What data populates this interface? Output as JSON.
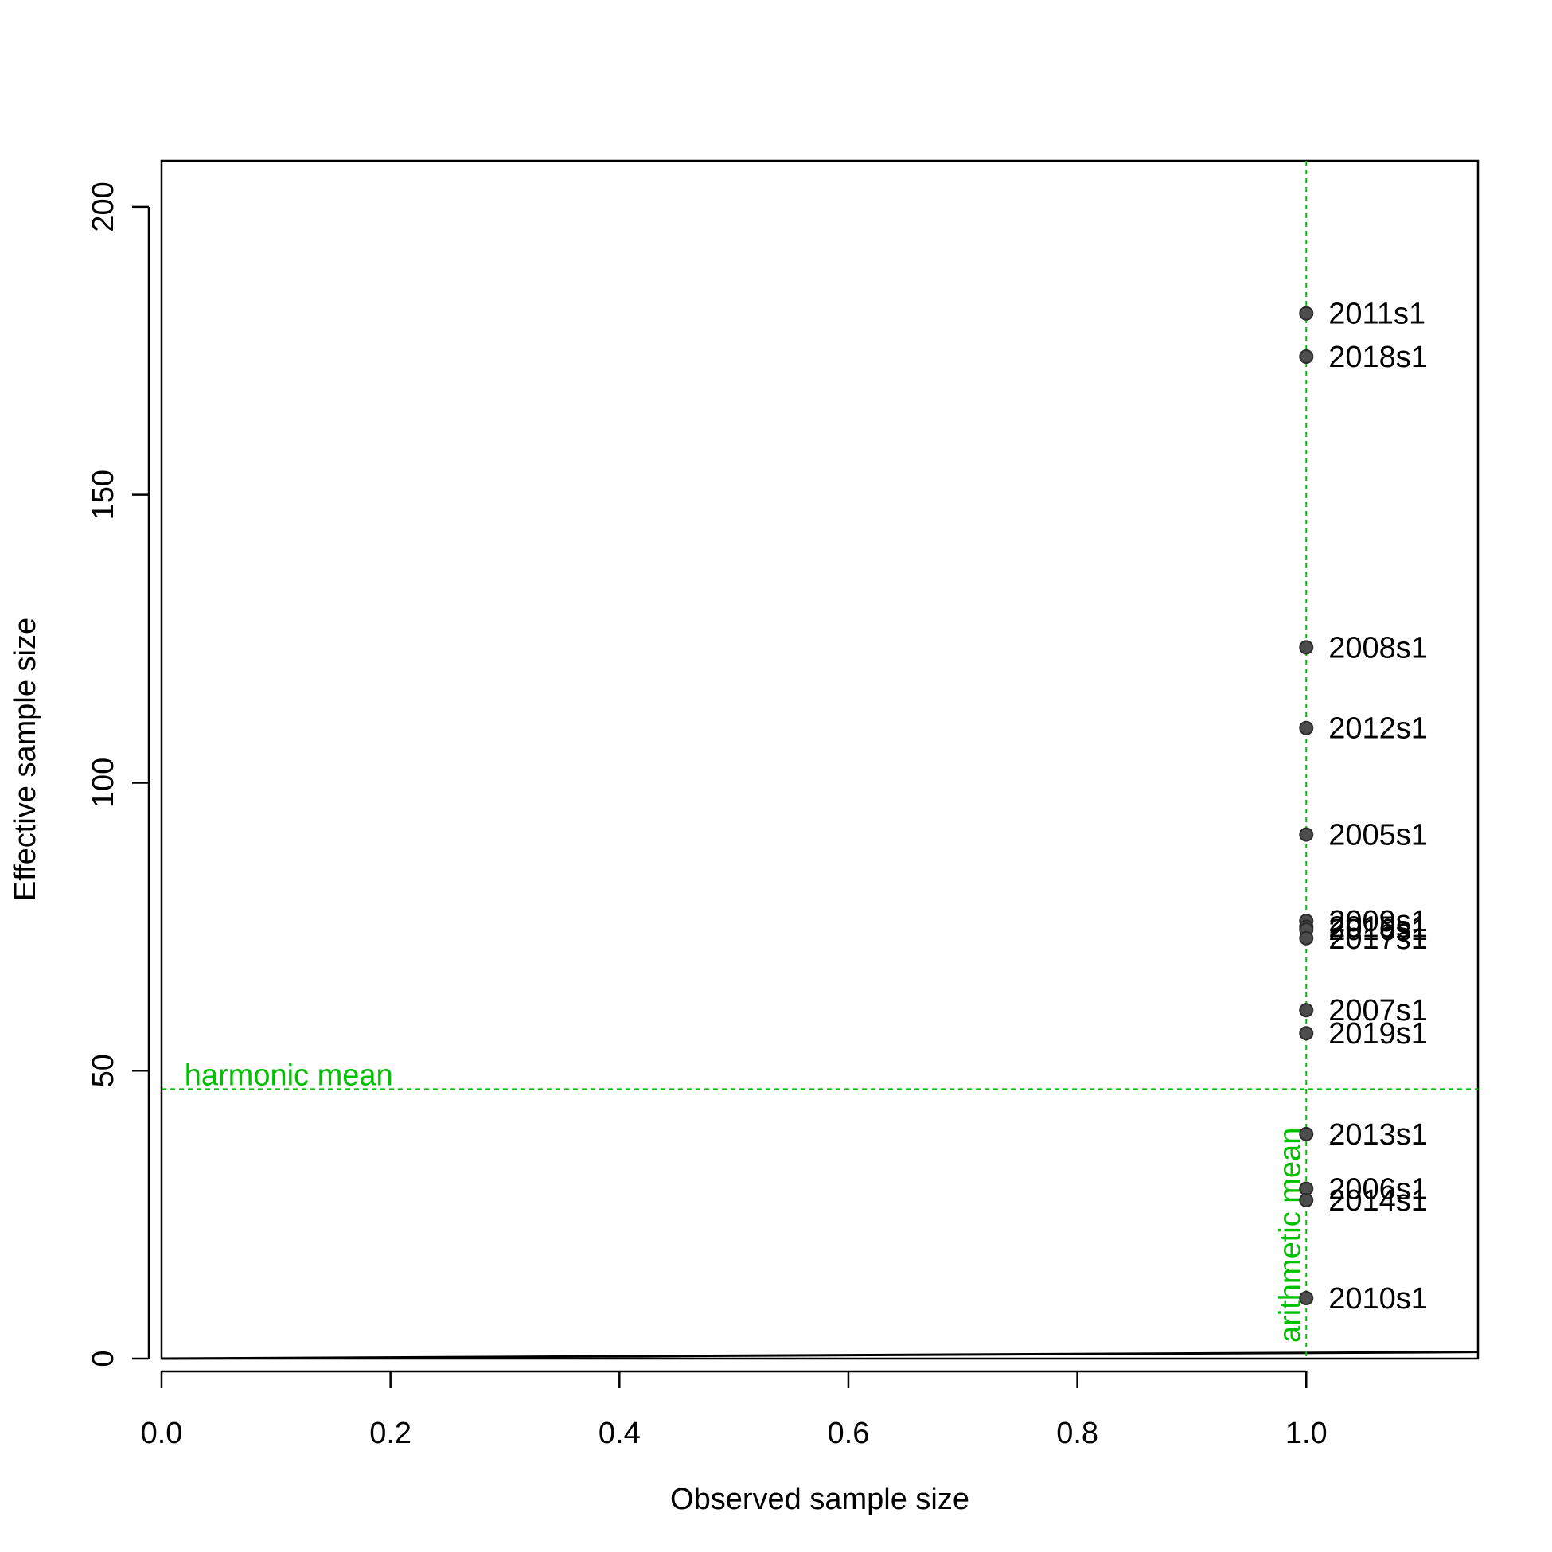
{
  "chart_data": {
    "type": "scatter",
    "xlabel": "Observed sample size",
    "ylabel": "Effective sample size",
    "xlim": [
      0,
      1.15
    ],
    "ylim": [
      0,
      208
    ],
    "x_ticks": [
      "0.0",
      "0.2",
      "0.4",
      "0.6",
      "0.8",
      "1.0"
    ],
    "x_tick_values": [
      0,
      0.2,
      0.4,
      0.6,
      0.8,
      1.0
    ],
    "y_ticks": [
      "0",
      "50",
      "100",
      "150",
      "200"
    ],
    "y_tick_values": [
      0,
      50,
      100,
      150,
      200
    ],
    "grid": false,
    "point_color": "#4d4d4d",
    "reference_color": "#00c000",
    "points": [
      {
        "label": "2011s1",
        "x": 1,
        "y": 181.5
      },
      {
        "label": "2018s1",
        "x": 1,
        "y": 174
      },
      {
        "label": "2008s1",
        "x": 1,
        "y": 123.5
      },
      {
        "label": "2012s1",
        "x": 1,
        "y": 109.5
      },
      {
        "label": "2005s1",
        "x": 1,
        "y": 91
      },
      {
        "label": "2009s1",
        "x": 1,
        "y": 76
      },
      {
        "label": "2015s1",
        "x": 1,
        "y": 75
      },
      {
        "label": "2016s1",
        "x": 1,
        "y": 74.5
      },
      {
        "label": "2017s1",
        "x": 1,
        "y": 73
      },
      {
        "label": "2007s1",
        "x": 1,
        "y": 60.5
      },
      {
        "label": "2019s1",
        "x": 1,
        "y": 56.5
      },
      {
        "label": "2013s1",
        "x": 1,
        "y": 39
      },
      {
        "label": "2006s1",
        "x": 1,
        "y": 29.5
      },
      {
        "label": "2014s1",
        "x": 1,
        "y": 27.5
      },
      {
        "label": "2010s1",
        "x": 1,
        "y": 10.5
      }
    ],
    "reference_lines": [
      {
        "orientation": "horizontal",
        "value": 46.8,
        "label": "harmonic mean",
        "style": "dashed"
      },
      {
        "orientation": "vertical",
        "value": 1,
        "label": "arithmetic mean",
        "style": "dashed"
      }
    ],
    "identity_line": {
      "x": [
        0,
        1.15
      ],
      "y": [
        0,
        1.15
      ]
    }
  }
}
